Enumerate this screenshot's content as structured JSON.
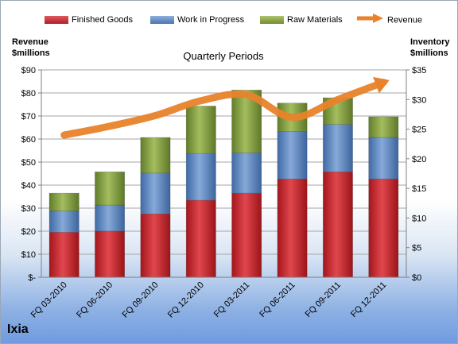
{
  "legend": {
    "finished": "Finished Goods",
    "wip": "Work in Progress",
    "raw": "Raw Materials",
    "revenue": "Revenue"
  },
  "left_axis_title": [
    "Revenue",
    "$millions"
  ],
  "right_axis_title": [
    "Inventory",
    "$millions"
  ],
  "company": "Ixia",
  "colors": {
    "finished": "#c0272d",
    "wip": "#4f81bd",
    "raw": "#7f9a3f",
    "revenue": "#e8832b"
  },
  "chart_data": {
    "type": "bar",
    "title": "Quarterly Periods",
    "xlabel": "",
    "categories": [
      "FQ 03-2010",
      "FQ 06-2010",
      "FQ 09-2010",
      "FQ 12-2010",
      "FQ 03-2011",
      "FQ 06-2011",
      "FQ 09-2011",
      "FQ 12-2011"
    ],
    "stacked": true,
    "series": [
      {
        "name": "Finished Goods",
        "axis": "right",
        "values": [
          7.6,
          7.8,
          10.7,
          13.0,
          14.2,
          16.6,
          17.8,
          16.6
        ]
      },
      {
        "name": "Work in Progress",
        "axis": "right",
        "values": [
          3.6,
          4.4,
          6.9,
          7.9,
          6.8,
          8.0,
          8.0,
          7.0
        ]
      },
      {
        "name": "Raw Materials",
        "axis": "right",
        "values": [
          3.0,
          5.6,
          6.0,
          8.0,
          10.6,
          4.8,
          4.5,
          3.5
        ]
      },
      {
        "name": "Revenue",
        "type": "line",
        "axis": "right",
        "values": [
          24.0,
          25.5,
          27.3,
          29.8,
          30.8,
          27.0,
          30.0,
          32.9
        ]
      }
    ],
    "y_left": {
      "label": "Revenue $millions",
      "ylim": [
        0,
        90
      ],
      "ticks": [
        "$-",
        "$10",
        "$20",
        "$30",
        "$40",
        "$50",
        "$60",
        "$70",
        "$80",
        "$90"
      ]
    },
    "y_right": {
      "label": "Inventory $millions",
      "ylim": [
        0,
        35
      ],
      "ticks": [
        "$0",
        "$5",
        "$10",
        "$15",
        "$20",
        "$25",
        "$30",
        "$35"
      ]
    },
    "grid": true,
    "legend_position": "top"
  }
}
